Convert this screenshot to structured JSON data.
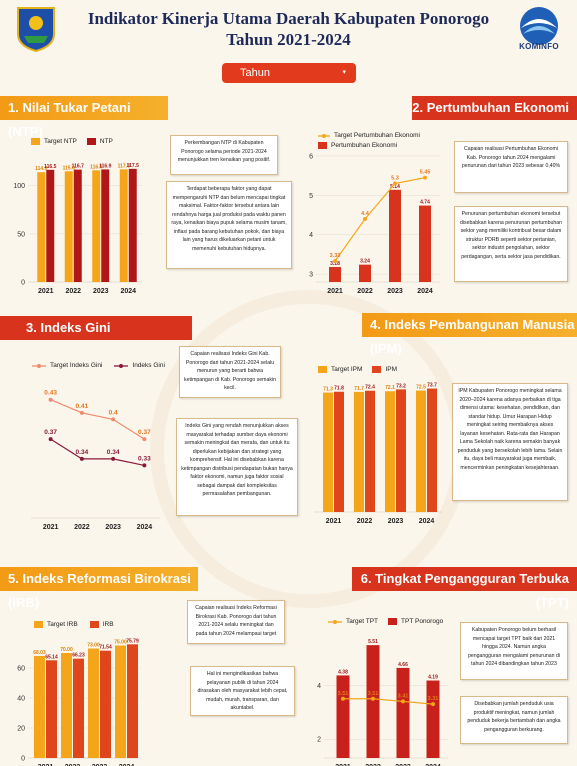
{
  "header": {
    "title_line1": "Indikator Kinerja Utama Daerah Kabupaten Ponorogo",
    "title_line2": "Tahun 2021-2024",
    "right_logo_text": "KOMINFO",
    "watermark_text": "PONOROGO"
  },
  "filter": {
    "label": "Tahun",
    "caret": "▾"
  },
  "sections": {
    "s1": "1. Nilai Tukar Petani (NTP)",
    "s2": "2. Pertumbuhan Ekonomi",
    "s3": "3. Indeks Gini",
    "s4": "4. Indeks Pembangunan Manusia (IPM)",
    "s5": "5. Indeks Reformasi Birokrasi (IRB)",
    "s6": "6. Tingkat Pengangguran Terbuka (TPT)"
  },
  "notes": {
    "ntp1": "Perkembangan NTP di Kabupaten Ponorogo selama periode 2021-2024 menunjukkan tren kenaikan yang positif.",
    "ntp2": "Terdapat beberapa faktor yang dapat mempengaruhi NTP dan belum mencapai tingkat maksimal. Faktor-faktor tersebut antara lain rendahnya harga jual produksi pada waktu panen raya, kenaikan biaya pupuk selama musim tanam, inflasi pada barang kebutuhan pokok, dan biaya lain yang harus dikeluarkan petani untuk memenuhi kebutuhan hidupnya.",
    "pe1": "Capaian realisasi Pertumbuhan Ekonomi Kab. Ponorogo tahun 2024 mengalami penurunan dari tahun 2023 sebesar 0,40%",
    "pe2": "Penurunan pertumbuhan ekonomi tersebut disebabkan karena penurunan pertumbuhan sektor yang memiliki kontribusi besar dalam struktur PDRB seperti sektor pertanian, sektor industri pengolahan, sektor perdagangan, serta sektor jasa pendidikan.",
    "gini1": "Capaian realisasi Indeks Gini Kab. Ponorogo dari tahun 2021-2024 selalu menurun yang berarti bahwa ketimpangan di Kab. Ponorogo semakin kecil.",
    "gini2": "Indeks Gini yang rendah menunjukkan akses masyarakat terhadap sumber daya ekonomi semakin meningkat dan merata, dan untuk itu diperlukan kebijakan dan strategi yang komprehensif. Hal ini disebabkan karena ketimpangan distribusi pendapatan bukan hanya faktor ekonomi, namun juga faktor sosial sebagai dampak dari kompleksitas permasalahan pembangunan.",
    "ipm1": "IPM Kabupaten Ponorogo meningkat selama 2020–2024 karena adanya perbaikan di tiga dimensi utama: kesehatan, pendidikan, dan standar hidup. Umur Harapan Hidup meningkat seiring membaiknya akses layanan kesehatan. Rata-rata dan Harapan Lama Sekolah naik karena semakin banyak penduduk yang bersekolah lebih lama. Selain itu, daya beli masyarakat juga membaik, mencerminkan peningkatan kesejahteraan.",
    "irb1": "Capaian realisasi Indeks Reformasi Birokrasi Kab. Ponorogo dari tahun 2021-2024 selalu meningkat dan pada tahun 2024 melampaui target",
    "irb2": "Hal ini mengindikasikan bahwa pelayanan publik di tahun 2024 dirasakan oleh masyarakat lebih cepat, mudah, murah, transparan, dan akuntabel.",
    "tpt1": "Kabupaten Ponorogo belum berhasil mencapai target TPT baik dari 2021 hingga 2024. Namun angka pengangguran mengalami penurunan di tahun 2024 dibandingkan tahun 2023",
    "tpt2": "Disebabkan jumlah penduduk usia produktif meningkat, namun jumlah penduduk bekerja bertambah dan angka pengangguran berkurang."
  },
  "colors": {
    "orange": "#f5a519",
    "red": "#c8201a",
    "red_dark": "#b01818",
    "maroon": "#8b1a3a",
    "salmon": "#f08a6e",
    "banner_orange": "#f39a16",
    "banner_red": "#d8341d",
    "dropdown": "#e23a1d"
  },
  "chart_data": [
    {
      "id": "ntp",
      "type": "bar",
      "categories": [
        "2021",
        "2022",
        "2023",
        "2024"
      ],
      "series": [
        {
          "name": "Target NTP",
          "values": [
            114.0,
            115.0,
            116.0,
            117.0
          ]
        },
        {
          "name": "NTP",
          "values": [
            116.5,
            116.7,
            116.9,
            117.5
          ]
        }
      ],
      "data_labels": [
        [
          "114.0",
          "115.0",
          "116.0",
          "117.0"
        ],
        [
          "116.5",
          "116.7",
          "116.9",
          "117.5"
        ]
      ],
      "yticks": [
        "0",
        "50",
        "100"
      ],
      "ylim": [
        0,
        135
      ]
    },
    {
      "id": "pe",
      "type": "bar+line",
      "categories": [
        "2021",
        "2022",
        "2023",
        "2024"
      ],
      "series": [
        {
          "name": "Target Pertumbuhan Ekonomi",
          "type": "line",
          "values": [
            3.33,
            4.4,
            5.3,
            5.45
          ]
        },
        {
          "name": "Pertumbuhan Ekonomi",
          "type": "bar",
          "values": [
            3.18,
            3.24,
            5.14,
            4.74
          ]
        }
      ],
      "data_labels": [
        [
          "3.33",
          "4.4",
          "5.3",
          "5.45"
        ],
        [
          "3.18",
          "3.24",
          "5.14",
          "4.74"
        ]
      ],
      "yticks": [
        "3",
        "4",
        "5",
        "6"
      ],
      "ylim": [
        2.8,
        6.1
      ]
    },
    {
      "id": "gini",
      "type": "line",
      "categories": [
        "2021",
        "2022",
        "2023",
        "2024"
      ],
      "series": [
        {
          "name": "Target Indeks Gini",
          "values": [
            0.43,
            0.41,
            0.4,
            0.37
          ]
        },
        {
          "name": "Indeks Gini",
          "values": [
            0.37,
            0.34,
            0.34,
            0.33
          ]
        }
      ],
      "data_labels": [
        [
          "0.43",
          "0.41",
          "0.4",
          "0.37"
        ],
        [
          "0.37",
          "0.34",
          "0.34",
          "0.33"
        ]
      ],
      "ylim": [
        0.25,
        0.46
      ]
    },
    {
      "id": "ipm",
      "type": "bar",
      "categories": [
        "2021",
        "2022",
        "2023",
        "2024"
      ],
      "series": [
        {
          "name": "Target IPM",
          "values": [
            71.3,
            71.7,
            72.1,
            72.5
          ]
        },
        {
          "name": "IPM",
          "values": [
            71.8,
            72.4,
            73.2,
            73.7
          ]
        }
      ],
      "data_labels": [
        [
          "71.3",
          "71.7",
          "72.1",
          "72.5"
        ],
        [
          "71.8",
          "72.4",
          "73.2",
          "73.7"
        ]
      ],
      "ylim": [
        0,
        80
      ]
    },
    {
      "id": "irb",
      "type": "bar",
      "categories": [
        "2021",
        "2022",
        "2023",
        "2024"
      ],
      "series": [
        {
          "name": "Target IRB",
          "values": [
            68.03,
            70.0,
            73.0,
            75.0
          ]
        },
        {
          "name": "IRB",
          "values": [
            65.14,
            66.23,
            71.54,
            75.79
          ]
        }
      ],
      "data_labels": [
        [
          "68.03",
          "70.00",
          "73.00",
          "75.00"
        ],
        [
          "65.14",
          "66.23",
          "71.54",
          "75.79"
        ]
      ],
      "yticks": [
        "0",
        "20",
        "40",
        "60"
      ],
      "ylim": [
        0,
        82
      ]
    },
    {
      "id": "tpt",
      "type": "bar+line",
      "categories": [
        "2021",
        "2022",
        "2023",
        "2024"
      ],
      "series": [
        {
          "name": "Target TPT",
          "type": "line",
          "values": [
            3.51,
            3.51,
            3.41,
            3.31
          ]
        },
        {
          "name": "TPT Ponorogo",
          "type": "bar",
          "values": [
            4.38,
            5.51,
            4.66,
            4.19
          ]
        }
      ],
      "data_labels": [
        [
          "3.51",
          "3.51",
          "3.41",
          "3.31"
        ],
        [
          "4.38",
          "5.51",
          "4.66",
          "4.19"
        ]
      ],
      "yticks": [
        "2",
        "4"
      ],
      "ylim": [
        1.3,
        6.0
      ]
    }
  ]
}
